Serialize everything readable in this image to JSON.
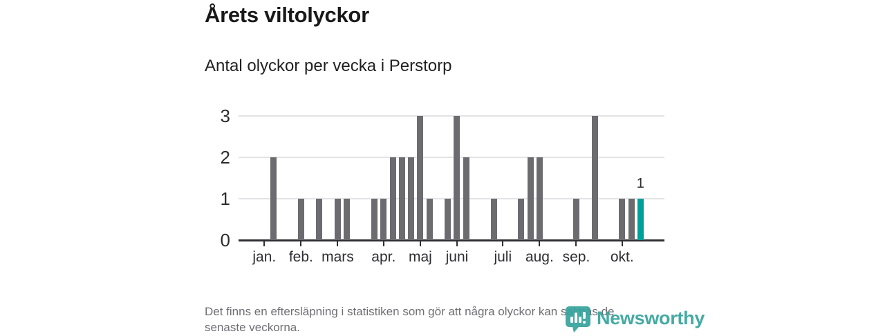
{
  "header": {
    "title": "Årets viltolyckor",
    "subtitle": "Antal olyckor per vecka i Perstorp"
  },
  "footer": {
    "note_line1": "Det finns en eftersläpning i statistiken som gör att några olyckor kan saknas de",
    "note_line2": "senaste veckorna."
  },
  "branding": {
    "logo_text": "Newsworthy",
    "logo_icon": "newsworthy-pin-barchart-icon",
    "brand_color": "#35a39c"
  },
  "chart_data": {
    "type": "bar",
    "title": "Årets viltolyckor",
    "subtitle": "Antal olyckor per vecka i Perstorp",
    "x_unit": "vecka",
    "num_week_slots": 46,
    "values": [
      0,
      0,
      0,
      2,
      0,
      0,
      1,
      0,
      1,
      0,
      1,
      1,
      0,
      0,
      1,
      1,
      2,
      2,
      2,
      3,
      1,
      0,
      1,
      3,
      2,
      0,
      0,
      1,
      0,
      0,
      1,
      2,
      2,
      0,
      0,
      0,
      1,
      0,
      3,
      0,
      0,
      1,
      1,
      1,
      0,
      0
    ],
    "highlight": {
      "slot": 43,
      "value": 1,
      "label": "1"
    },
    "months": [
      {
        "label": "jan.",
        "slot": 2
      },
      {
        "label": "feb.",
        "slot": 6
      },
      {
        "label": "mars",
        "slot": 10
      },
      {
        "label": "apr.",
        "slot": 15
      },
      {
        "label": "maj",
        "slot": 19
      },
      {
        "label": "juni",
        "slot": 23
      },
      {
        "label": "juli",
        "slot": 28
      },
      {
        "label": "aug.",
        "slot": 32
      },
      {
        "label": "sep.",
        "slot": 36
      },
      {
        "label": "okt.",
        "slot": 41
      }
    ],
    "y_ticks": [
      0,
      1,
      2,
      3
    ],
    "ylim": [
      0,
      3
    ],
    "grid": true,
    "legend": "none",
    "colors": {
      "bar": "#6b6b70",
      "highlight": "#00a09a",
      "axis": "#2e2e33",
      "gridline": "#e3e3e5"
    }
  }
}
